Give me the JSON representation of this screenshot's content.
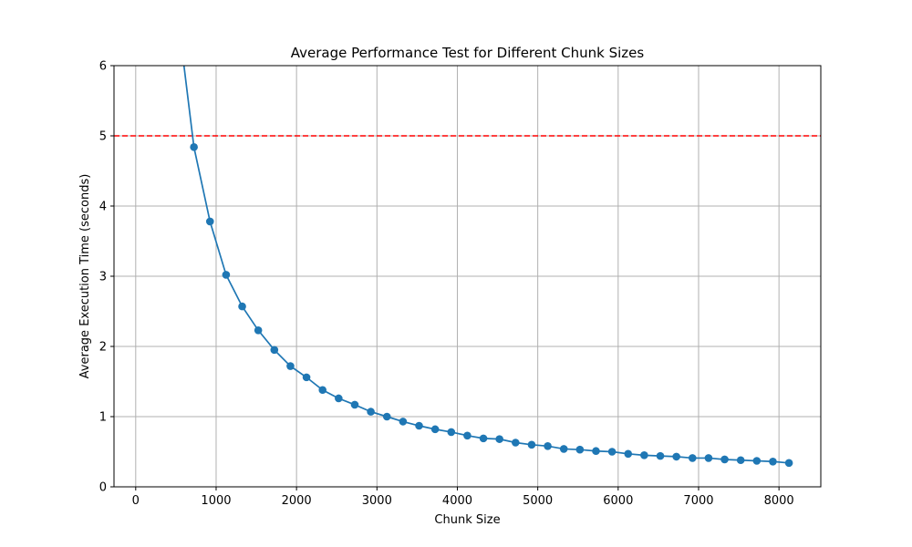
{
  "chart_data": {
    "type": "line",
    "title": "Average Performance Test for Different Chunk Sizes",
    "xlabel": "Chunk Size",
    "ylabel": "Average Execution Time (seconds)",
    "xlim": [
      -270,
      8520
    ],
    "ylim": [
      0,
      6
    ],
    "xticks": [
      0,
      1000,
      2000,
      3000,
      4000,
      5000,
      6000,
      7000,
      8000
    ],
    "yticks": [
      0,
      1,
      2,
      3,
      4,
      5,
      6
    ],
    "grid": true,
    "line_color": "#1f77b4",
    "threshold": {
      "y": 5,
      "color": "#ff0000",
      "style": "dashed"
    },
    "curve_start": {
      "x": 600,
      "y": 6.0
    },
    "series": [
      {
        "x": [
          724,
          924,
          1124,
          1324,
          1524,
          1724,
          1924,
          2124,
          2324,
          2524,
          2724,
          2924,
          3124,
          3324,
          3524,
          3724,
          3924,
          4124,
          4324,
          4524,
          4724,
          4924,
          5124,
          5324,
          5524,
          5724,
          5924,
          6124,
          6324,
          6524,
          6724,
          6924,
          7124,
          7324,
          7524,
          7724,
          7924,
          8124
        ],
        "y": [
          4.84,
          3.78,
          3.02,
          2.57,
          2.23,
          1.95,
          1.72,
          1.56,
          1.38,
          1.26,
          1.17,
          1.07,
          1.0,
          0.93,
          0.87,
          0.82,
          0.78,
          0.73,
          0.69,
          0.68,
          0.63,
          0.6,
          0.58,
          0.54,
          0.53,
          0.51,
          0.5,
          0.47,
          0.45,
          0.44,
          0.43,
          0.41,
          0.41,
          0.39,
          0.38,
          0.37,
          0.36,
          0.34
        ]
      }
    ]
  }
}
